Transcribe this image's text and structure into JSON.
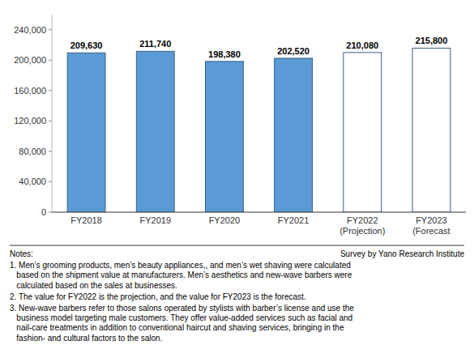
{
  "chart_data": {
    "type": "bar",
    "categories": [
      "FY2018",
      "FY2019",
      "FY2020",
      "FY2021",
      "FY2022\n(Projection)",
      "FY2023\n(Forecast"
    ],
    "values": [
      209630,
      211740,
      198380,
      202520,
      210080,
      215800
    ],
    "value_labels": [
      "209,630",
      "211,740",
      "198,380",
      "202,520",
      "210,080",
      "215,800"
    ],
    "colors": [
      "#5b9bd5",
      "#5b9bd5",
      "#5b9bd5",
      "#5b9bd5",
      "#ffffff",
      "#ffffff"
    ],
    "data_labels": true,
    "grid": false,
    "ylim": [
      0,
      260000
    ],
    "yticks": [
      0,
      {
        "value": 40000,
        "label": "40,000"
      },
      {
        "value": 80000,
        "label": "80,000"
      },
      {
        "value": 120000,
        "label": "120,000"
      },
      {
        "value": 160000,
        "label": "160,000"
      },
      {
        "value": 200000,
        "label": "200,000"
      },
      {
        "value": 240000,
        "label": "240,000"
      }
    ],
    "annotations": [
      "Notes:",
      "Survey by Yano Research Institute",
      "1. Men’s grooming products, men’s beauty appliances,, and men’s wet shaving were calculated\n   based on the shipment value at manufacturers. Men’s aesthetics and new-wave barbers were\n   calculated based on the sales at businesses.",
      "2. The value for FY2022 is the projection, and the value for FY2023 is the forecast.",
      "3. New-wave barbers refer to those salons operated by stylists with barber’s license and use the\n   business model targeting male customers. They offer value-added services such as facial and\n   nail-care treatments in addition to conventional haircut and shaving services, bringing in the\n   fashion- and cultural factors to the salon."
    ]
  }
}
